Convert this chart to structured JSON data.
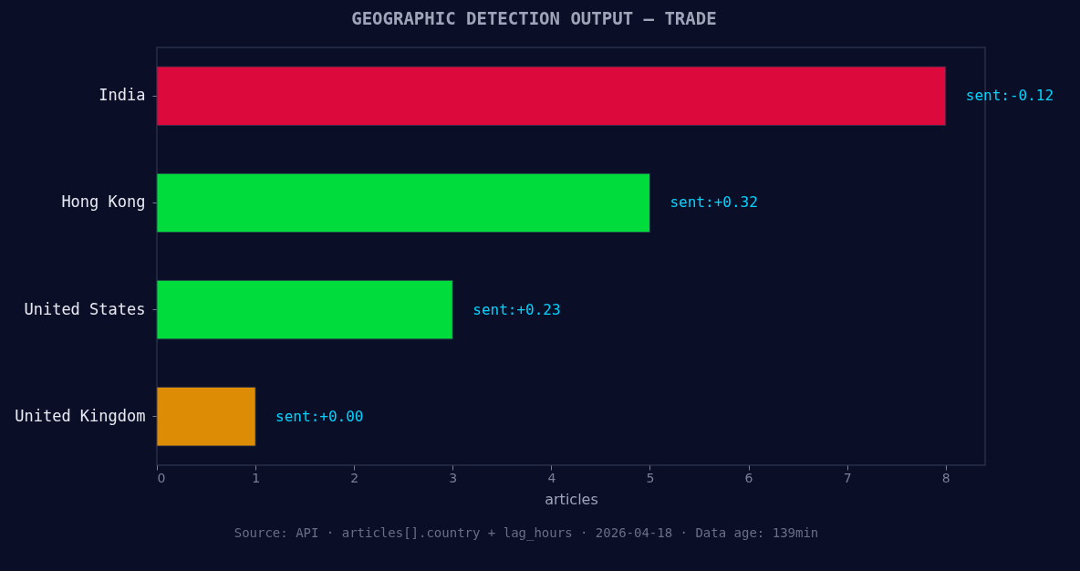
{
  "chart_data": {
    "type": "bar",
    "orientation": "horizontal",
    "title": "GEOGRAPHIC DETECTION OUTPUT — TRADE",
    "xlabel": "articles",
    "categories": [
      "India",
      "Hong Kong",
      "United States",
      "United Kingdom"
    ],
    "values": [
      8,
      5,
      3,
      1
    ],
    "colors": [
      "#dc0a3c",
      "#00dc3c",
      "#00dc3c",
      "#dc8c05"
    ],
    "xlim": [
      0,
      8.4
    ],
    "xticks": [
      0,
      1,
      2,
      3,
      4,
      5,
      6,
      7,
      8
    ],
    "grid": false,
    "annotations": [
      {
        "text": "sent:-0.12",
        "x": 8,
        "y": "India"
      },
      {
        "text": "sent:+0.32",
        "x": 5,
        "y": "Hong Kong"
      },
      {
        "text": "sent:+0.23",
        "x": 3,
        "y": "United States"
      },
      {
        "text": "sent:+0.00",
        "x": 1,
        "y": "United Kingdom"
      },
      "Source: API · articles[].country + lag_hours · 2026-04-18 · Data age: 139min"
    ]
  }
}
